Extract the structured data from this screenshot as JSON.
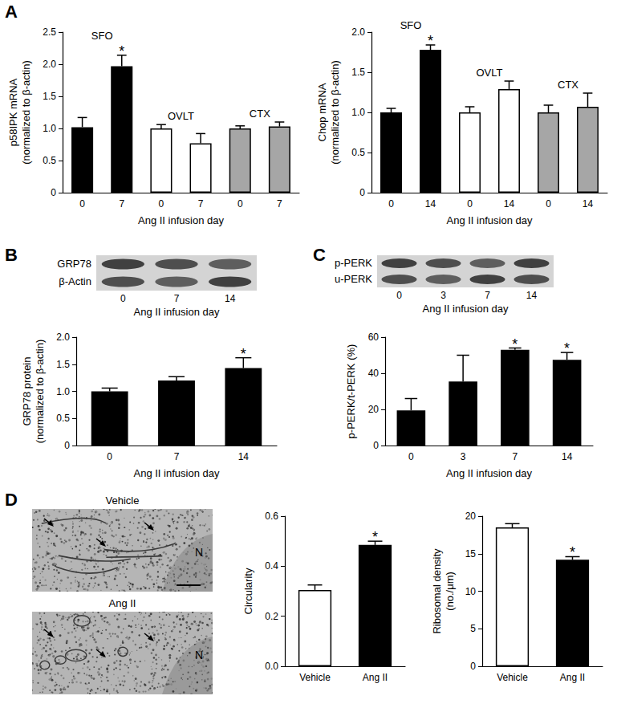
{
  "chart_data": [
    {
      "panel": "A",
      "type": "bar",
      "ylabel": "p58IPK mRNA\n(normalized to β-actin)",
      "xlabel": "Ang II infusion day",
      "ylim": [
        0,
        2.5
      ],
      "yticks": [
        0,
        0.5,
        {
          "value": 1,
          "label": "1.0"
        },
        1.5,
        {
          "value": 2,
          "label": "2.0"
        },
        2.5
      ],
      "grid": false,
      "series": [
        {
          "name": "SFO",
          "color": "#000000",
          "categories": [
            "0",
            "7"
          ],
          "values": [
            1.02,
            1.97
          ],
          "errors": [
            0.15,
            0.17
          ],
          "annotations": [
            null,
            "*"
          ]
        },
        {
          "name": "OVLT",
          "color": "#ffffff",
          "categories": [
            "0",
            "7"
          ],
          "values": [
            1.0,
            0.77
          ],
          "errors": [
            0.06,
            0.15
          ]
        },
        {
          "name": "CTX",
          "color": "#a6a6a6",
          "categories": [
            "0",
            "7"
          ],
          "values": [
            1.0,
            1.03
          ],
          "errors": [
            0.04,
            0.07
          ]
        }
      ]
    },
    {
      "type": "bar",
      "ylabel": "Chop mRNA\n(normalized to β-actin)",
      "xlabel": "Ang II infusion day",
      "ylim": [
        0,
        2
      ],
      "yticks": [
        0,
        0.5,
        {
          "value": 1,
          "label": "1.0"
        },
        1.5,
        {
          "value": 2,
          "label": "2.0"
        }
      ],
      "grid": false,
      "series": [
        {
          "name": "SFO",
          "color": "#000000",
          "categories": [
            "0",
            "14"
          ],
          "values": [
            1.0,
            1.78
          ],
          "errors": [
            0.05,
            0.06
          ],
          "annotations": [
            null,
            "*"
          ]
        },
        {
          "name": "OVLT",
          "color": "#ffffff",
          "categories": [
            "0",
            "14"
          ],
          "values": [
            1.0,
            1.29
          ],
          "errors": [
            0.07,
            0.1
          ]
        },
        {
          "name": "CTX",
          "color": "#a6a6a6",
          "categories": [
            "0",
            "14"
          ],
          "values": [
            1.0,
            1.07
          ],
          "errors": [
            0.09,
            0.17
          ]
        }
      ]
    },
    {
      "panel": "B",
      "type": "bar",
      "ylabel": "GRP78 protein\n(normalized to β-actin)",
      "xlabel": "Ang II infusion day",
      "ylim": [
        0,
        2
      ],
      "yticks": [
        0,
        0.5,
        {
          "value": 1,
          "label": "1.0"
        },
        1.5,
        {
          "value": 2,
          "label": "2.0"
        }
      ],
      "grid": false,
      "categories": [
        "0",
        "7",
        "14"
      ],
      "values": [
        1.0,
        1.2,
        1.43
      ],
      "errors": [
        0.06,
        0.07,
        0.19
      ],
      "annotations": [
        null,
        null,
        "*"
      ],
      "color": "#000000"
    },
    {
      "panel": "C",
      "type": "bar",
      "ylabel": "p-PERK/t-PERK (%)",
      "xlabel": "Ang II infusion day",
      "ylim": [
        0,
        60
      ],
      "yticks": [
        0,
        20,
        40,
        60
      ],
      "grid": false,
      "categories": [
        "0",
        "3",
        "7",
        "14"
      ],
      "values": [
        19.5,
        35.5,
        53,
        47.5
      ],
      "errors": [
        6.5,
        14.5,
        1,
        4
      ],
      "annotations": [
        null,
        null,
        "*",
        "*"
      ],
      "color": "#000000"
    },
    {
      "panel": "D",
      "type": "bar",
      "ylabel": "Circularity",
      "ylim": [
        0,
        0.6
      ],
      "yticks": [
        {
          "value": 0,
          "label": "0.0"
        },
        0.2,
        0.4,
        0.6
      ],
      "grid": false,
      "categories": [
        "Vehicle",
        "Ang II"
      ],
      "values": [
        0.305,
        0.485
      ],
      "errors": [
        0.02,
        0.015
      ],
      "annotations": [
        null,
        "*"
      ],
      "colors": [
        "#ffffff",
        "#000000"
      ]
    },
    {
      "type": "bar",
      "ylabel": "Ribosomal density\n(no./μm)",
      "ylim": [
        0,
        20
      ],
      "yticks": [
        0,
        5,
        10,
        15,
        20
      ],
      "grid": false,
      "categories": [
        "Vehicle",
        "Ang II"
      ],
      "values": [
        18.5,
        14.2
      ],
      "errors": [
        0.5,
        0.4
      ],
      "annotations": [
        null,
        "*"
      ],
      "colors": [
        "#ffffff",
        "#000000"
      ]
    }
  ],
  "blots": [
    {
      "rows": [
        "GRP78",
        "β-Actin"
      ],
      "lanes": [
        "0",
        "7",
        "14"
      ],
      "xlabel": "Ang II infusion day"
    },
    {
      "rows": [
        "p-PERK",
        "u-PERK"
      ],
      "lanes": [
        "0",
        "3",
        "7",
        "14"
      ],
      "xlabel": "Ang II infusion day"
    }
  ],
  "micrographs": {
    "images": [
      "Vehicle",
      "Ang II"
    ],
    "marker": "N"
  }
}
